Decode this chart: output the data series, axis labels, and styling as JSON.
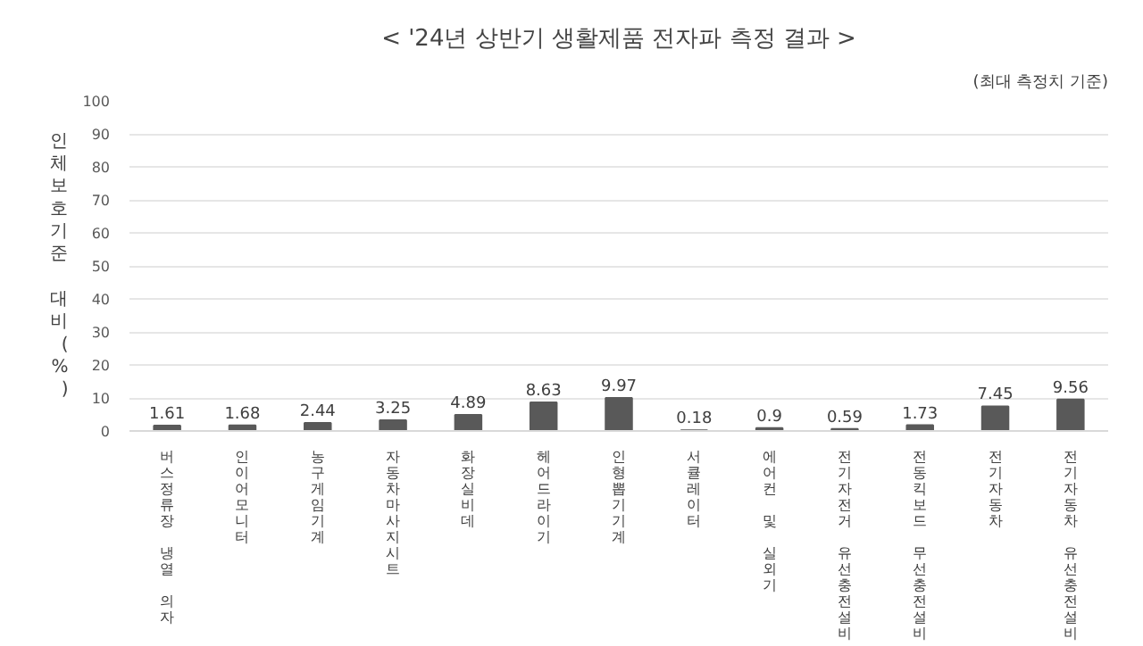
{
  "chart_data": {
    "type": "bar",
    "title": "< '24년 상반기 생활제품 전자파 측정 결과 >",
    "ylabel": "인체보호기준 대비(%)",
    "annotations": [
      "(최대 측정치 기준)"
    ],
    "categories": [
      "버스정류장 냉열 의자",
      "인이어모니터",
      "농구게임기계",
      "자동차마사지시트",
      "화장실비데",
      "헤어드라이기",
      "인형뽑기기계",
      "서큘레이터",
      "에어컨 및 실외기",
      "전기자전거 유선충전설비",
      "전동킥보드 무선충전설비",
      "전기자동차",
      "전기자동차 유선충전설비"
    ],
    "values": [
      1.61,
      1.68,
      2.44,
      3.25,
      4.89,
      8.63,
      9.97,
      0.18,
      0.9,
      0.59,
      1.73,
      7.45,
      9.56
    ],
    "color": "#595959",
    "ylim": [
      0,
      100
    ],
    "yticks": [
      0,
      10,
      20,
      30,
      40,
      50,
      60,
      70,
      80,
      90,
      100
    ],
    "grid": "y",
    "data_labels": true
  }
}
